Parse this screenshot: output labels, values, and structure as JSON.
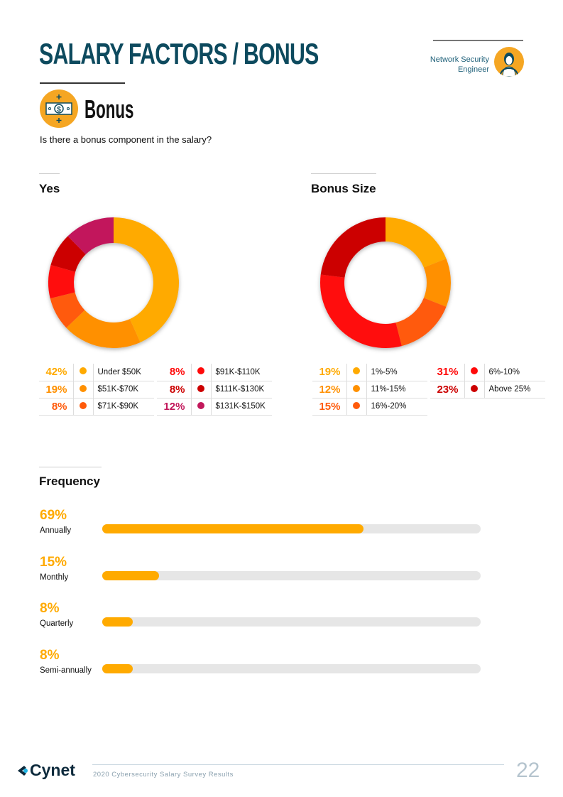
{
  "header": {
    "title": "SALARY FACTORS / BONUS",
    "role_line1": "Network Security",
    "role_line2": "Engineer"
  },
  "section": {
    "title": "Bonus",
    "question": "Is there a bonus component in the salary?"
  },
  "chart_data": [
    {
      "type": "pie",
      "title": "Yes",
      "categories": [
        "Under $50K",
        "$51K-$70K",
        "$71K-$90K",
        "$91K-$110K",
        "$111K-$130K",
        "$131K-$150K"
      ],
      "values": [
        42,
        19,
        8,
        8,
        8,
        12
      ],
      "labels": [
        "42%",
        "19%",
        "8%",
        "8%",
        "8%",
        "12%"
      ],
      "colors": [
        "#FFAA00",
        "#FF9000",
        "#FF5A0A",
        "#FF0A0A",
        "#CC0000",
        "#C2185B"
      ]
    },
    {
      "type": "pie",
      "title": "Bonus Size",
      "categories": [
        "1%-5%",
        "11%-15%",
        "16%-20%",
        "6%-10%",
        "Above 25%"
      ],
      "values": [
        19,
        12,
        15,
        31,
        23
      ],
      "labels": [
        "19%",
        "12%",
        "15%",
        "31%",
        "23%"
      ],
      "colors": [
        "#FFAA00",
        "#FF9000",
        "#FF5A0A",
        "#FF0A0A",
        "#CC0000"
      ]
    },
    {
      "type": "bar",
      "title": "Frequency",
      "categories": [
        "Annually",
        "Monthly",
        "Quarterly",
        "Semi-annually"
      ],
      "values": [
        69,
        15,
        8,
        8
      ],
      "labels": [
        "69%",
        "15%",
        "8%",
        "8%"
      ],
      "xlim": [
        0,
        100
      ],
      "color": "#FFAA00"
    }
  ],
  "footer": {
    "brand": "Cynet",
    "text": "2020 Cybersecurity Salary Survey Results",
    "page": "22"
  }
}
